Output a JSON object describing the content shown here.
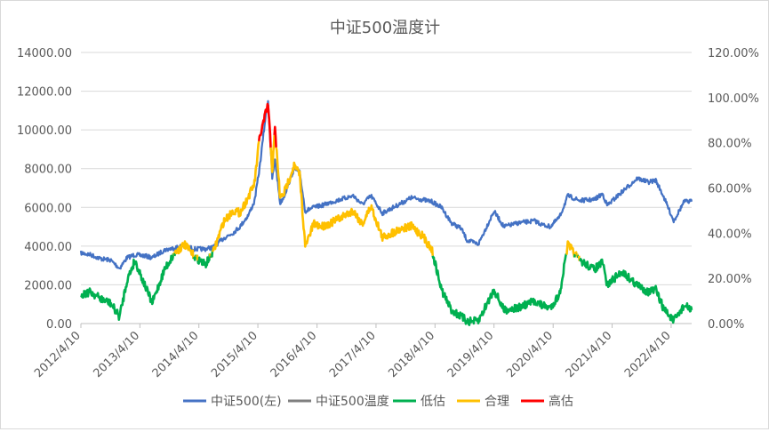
{
  "chart_data": {
    "type": "line",
    "title": "中证500温度计",
    "y_left": {
      "range": [
        0,
        14000
      ],
      "ticks": [
        "0.00",
        "2000.00",
        "4000.00",
        "6000.00",
        "8000.00",
        "10000.00",
        "12000.00",
        "14000.00"
      ]
    },
    "y_right": {
      "range": [
        0,
        1.2
      ],
      "ticks": [
        "0.00%",
        "20.00%",
        "40.00%",
        "60.00%",
        "80.00%",
        "100.00%",
        "120.00%"
      ]
    },
    "x_ticks": [
      "2012/4/10",
      "2013/4/10",
      "2014/4/10",
      "2015/4/10",
      "2016/4/10",
      "2017/4/10",
      "2018/4/10",
      "2019/4/10",
      "2020/4/10",
      "2021/4/10",
      "2022/4/10"
    ],
    "x_range": [
      "2012/4/10",
      "2022/8/15"
    ],
    "grid": "horizontal",
    "legend_position": "bottom",
    "legend": [
      "中证500(左)",
      "中证500温度",
      "低估",
      "合理",
      "高估"
    ],
    "colors": {
      "index": "#4472c4",
      "temperature": "#7f7f7f",
      "low": "#00b050",
      "fair": "#ffc000",
      "high": "#ff0000",
      "grid": "#d9d9d9",
      "text": "#595959"
    },
    "bands": {
      "low_below": 0.3,
      "high_above": 0.8
    },
    "series": [
      {
        "name": "中证500(左)",
        "axis": "left",
        "points": [
          [
            "2012/4/10",
            3650
          ],
          [
            "2012/6/10",
            3550
          ],
          [
            "2012/8/10",
            3350
          ],
          [
            "2012/10/10",
            3280
          ],
          [
            "2012/12/5",
            2850
          ],
          [
            "2013/1/20",
            3400
          ],
          [
            "2013/3/10",
            3550
          ],
          [
            "2013/5/10",
            3500
          ],
          [
            "2013/6/25",
            3400
          ],
          [
            "2013/9/10",
            3800
          ],
          [
            "2013/11/10",
            3900
          ],
          [
            "2014/1/10",
            4050
          ],
          [
            "2014/3/10",
            3850
          ],
          [
            "2014/5/20",
            3850
          ],
          [
            "2014/7/10",
            3950
          ],
          [
            "2014/9/10",
            4400
          ],
          [
            "2014/11/10",
            4700
          ],
          [
            "2014/12/20",
            5000
          ],
          [
            "2015/2/10",
            5600
          ],
          [
            "2015/3/20",
            6300
          ],
          [
            "2015/4/20",
            8000
          ],
          [
            "2015/5/25",
            10500
          ],
          [
            "2015/6/12",
            11500
          ],
          [
            "2015/7/8",
            7500
          ],
          [
            "2015/7/25",
            8500
          ],
          [
            "2015/8/26",
            6200
          ],
          [
            "2015/9/20",
            6600
          ],
          [
            "2015/11/20",
            8000
          ],
          [
            "2015/12/25",
            7800
          ],
          [
            "2016/1/28",
            5800
          ],
          [
            "2016/3/20",
            6000
          ],
          [
            "2016/5/10",
            6100
          ],
          [
            "2016/7/20",
            6300
          ],
          [
            "2016/11/20",
            6600
          ],
          [
            "2017/1/15",
            6150
          ],
          [
            "2017/3/10",
            6600
          ],
          [
            "2017/5/20",
            5700
          ],
          [
            "2017/9/10",
            6200
          ],
          [
            "2017/11/15",
            6500
          ],
          [
            "2018/1/20",
            6400
          ],
          [
            "2018/3/20",
            6300
          ],
          [
            "2018/5/20",
            6000
          ],
          [
            "2018/7/20",
            5200
          ],
          [
            "2018/9/20",
            4900
          ],
          [
            "2018/10/25",
            4300
          ],
          [
            "2019/1/3",
            4100
          ],
          [
            "2019/4/10",
            5800
          ],
          [
            "2019/6/10",
            5000
          ],
          [
            "2019/9/10",
            5200
          ],
          [
            "2019/12/20",
            5300
          ],
          [
            "2020/2/3",
            5100
          ],
          [
            "2020/3/23",
            5000
          ],
          [
            "2020/5/20",
            5500
          ],
          [
            "2020/7/10",
            6600
          ],
          [
            "2020/9/20",
            6350
          ],
          [
            "2020/12/20",
            6400
          ],
          [
            "2021/2/10",
            6700
          ],
          [
            "2021/3/10",
            6100
          ],
          [
            "2021/6/10",
            6800
          ],
          [
            "2021/9/13",
            7500
          ],
          [
            "2021/11/20",
            7300
          ],
          [
            "2022/1/5",
            7400
          ],
          [
            "2022/2/20",
            6600
          ],
          [
            "2022/4/26",
            5300
          ],
          [
            "2022/6/30",
            6300
          ],
          [
            "2022/8/15",
            6300
          ]
        ]
      },
      {
        "name": "中证500温度",
        "axis": "right",
        "points": [
          [
            "2012/4/10",
            0.13
          ],
          [
            "2012/6/10",
            0.14
          ],
          [
            "2012/8/10",
            0.11
          ],
          [
            "2012/10/10",
            0.09
          ],
          [
            "2012/12/5",
            0.03
          ],
          [
            "2013/1/20",
            0.19
          ],
          [
            "2013/3/10",
            0.28
          ],
          [
            "2013/5/10",
            0.17
          ],
          [
            "2013/6/25",
            0.09
          ],
          [
            "2013/9/10",
            0.24
          ],
          [
            "2013/11/10",
            0.31
          ],
          [
            "2014/1/10",
            0.35
          ],
          [
            "2014/3/10",
            0.3
          ],
          [
            "2014/5/20",
            0.26
          ],
          [
            "2014/7/10",
            0.32
          ],
          [
            "2014/9/10",
            0.45
          ],
          [
            "2014/11/10",
            0.5
          ],
          [
            "2014/12/20",
            0.49
          ],
          [
            "2015/2/10",
            0.56
          ],
          [
            "2015/3/20",
            0.62
          ],
          [
            "2015/4/20",
            0.82
          ],
          [
            "2015/5/25",
            0.92
          ],
          [
            "2015/6/12",
            0.97
          ],
          [
            "2015/7/8",
            0.68
          ],
          [
            "2015/7/25",
            0.86
          ],
          [
            "2015/8/26",
            0.55
          ],
          [
            "2015/9/20",
            0.58
          ],
          [
            "2015/11/20",
            0.7
          ],
          [
            "2015/12/25",
            0.66
          ],
          [
            "2016/1/28",
            0.34
          ],
          [
            "2016/3/20",
            0.44
          ],
          [
            "2016/5/10",
            0.43
          ],
          [
            "2016/7/20",
            0.45
          ],
          [
            "2016/11/20",
            0.5
          ],
          [
            "2017/1/15",
            0.44
          ],
          [
            "2017/3/10",
            0.52
          ],
          [
            "2017/5/20",
            0.38
          ],
          [
            "2017/9/10",
            0.42
          ],
          [
            "2017/11/15",
            0.43
          ],
          [
            "2018/1/20",
            0.39
          ],
          [
            "2018/3/20",
            0.33
          ],
          [
            "2018/5/20",
            0.15
          ],
          [
            "2018/7/20",
            0.06
          ],
          [
            "2018/9/20",
            0.03
          ],
          [
            "2018/10/25",
            0.01
          ],
          [
            "2019/1/3",
            0.01
          ],
          [
            "2019/4/10",
            0.15
          ],
          [
            "2019/6/10",
            0.06
          ],
          [
            "2019/9/10",
            0.07
          ],
          [
            "2019/12/20",
            0.1
          ],
          [
            "2020/2/3",
            0.08
          ],
          [
            "2020/3/23",
            0.07
          ],
          [
            "2020/5/20",
            0.13
          ],
          [
            "2020/7/10",
            0.35
          ],
          [
            "2020/9/20",
            0.28
          ],
          [
            "2020/12/20",
            0.24
          ],
          [
            "2021/2/10",
            0.27
          ],
          [
            "2021/3/10",
            0.17
          ],
          [
            "2021/6/10",
            0.23
          ],
          [
            "2021/9/13",
            0.17
          ],
          [
            "2021/11/20",
            0.14
          ],
          [
            "2022/1/5",
            0.15
          ],
          [
            "2022/2/20",
            0.07
          ],
          [
            "2022/4/26",
            0.01
          ],
          [
            "2022/6/30",
            0.08
          ],
          [
            "2022/8/15",
            0.06
          ]
        ]
      }
    ]
  }
}
